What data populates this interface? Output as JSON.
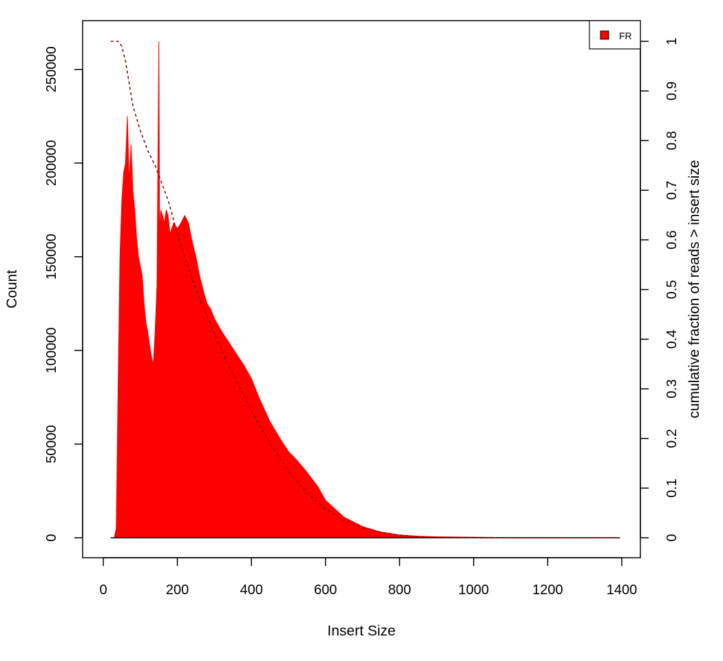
{
  "chart_data": {
    "type": "area",
    "xlabel": "Insert Size",
    "ylabel": "Count",
    "y2label": "cumulative fraction of reads > insert size",
    "xlim": [
      0,
      1400
    ],
    "ylim": [
      0,
      265000
    ],
    "y2lim": [
      0,
      1
    ],
    "xticks": [
      0,
      200,
      400,
      600,
      800,
      1000,
      1200,
      1400
    ],
    "yticks": [
      0,
      50000,
      100000,
      150000,
      200000,
      250000
    ],
    "y2ticks": [
      0,
      0.1,
      0.2,
      0.3,
      0.4,
      0.5,
      0.6,
      0.7,
      0.8,
      0.9,
      1
    ],
    "grid": false,
    "legend_position": "top-right",
    "series": [
      {
        "name": "FR",
        "kind": "histogram",
        "color": "#ff0000",
        "x": [
          20,
          30,
          35,
          40,
          45,
          50,
          55,
          60,
          65,
          70,
          75,
          80,
          85,
          90,
          95,
          100,
          105,
          110,
          115,
          120,
          125,
          130,
          135,
          140,
          145,
          150,
          152,
          155,
          160,
          165,
          170,
          175,
          180,
          190,
          200,
          210,
          220,
          230,
          240,
          250,
          260,
          270,
          280,
          290,
          300,
          320,
          340,
          360,
          380,
          400,
          420,
          450,
          480,
          500,
          520,
          550,
          580,
          600,
          650,
          700,
          750,
          800,
          850,
          900,
          1000,
          1100,
          1200,
          1300,
          1395
        ],
        "values": [
          0,
          0,
          5000,
          80000,
          150000,
          180000,
          195000,
          200000,
          225000,
          190000,
          210000,
          185000,
          175000,
          160000,
          150000,
          145000,
          140000,
          125000,
          115000,
          110000,
          103000,
          97000,
          92000,
          110000,
          135000,
          265000,
          160000,
          175000,
          172000,
          168000,
          175000,
          172000,
          162000,
          168000,
          165000,
          168000,
          172000,
          168000,
          158000,
          150000,
          140000,
          132000,
          125000,
          122000,
          117000,
          110000,
          104000,
          98000,
          92000,
          85000,
          75000,
          62000,
          52000,
          46000,
          42000,
          35000,
          27000,
          20000,
          11000,
          6000,
          3000,
          1500,
          800,
          500,
          250,
          120,
          60,
          30,
          0
        ]
      },
      {
        "name": "",
        "kind": "cumulative",
        "color": "#8b0000",
        "axis": "right",
        "x": [
          20,
          40,
          50,
          60,
          80,
          100,
          120,
          140,
          150,
          160,
          175,
          190,
          200,
          220,
          250,
          300,
          350,
          400,
          450,
          500,
          550,
          600,
          650,
          700,
          750,
          800,
          850,
          900,
          1000,
          1100,
          1395
        ],
        "values": [
          1.0,
          1.0,
          0.99,
          0.96,
          0.87,
          0.82,
          0.78,
          0.75,
          0.73,
          0.71,
          0.68,
          0.64,
          0.61,
          0.565,
          0.5,
          0.41,
          0.33,
          0.255,
          0.19,
          0.135,
          0.09,
          0.058,
          0.035,
          0.02,
          0.011,
          0.005,
          0.002,
          0.001,
          0.0005,
          0.0002,
          0
        ]
      }
    ]
  }
}
